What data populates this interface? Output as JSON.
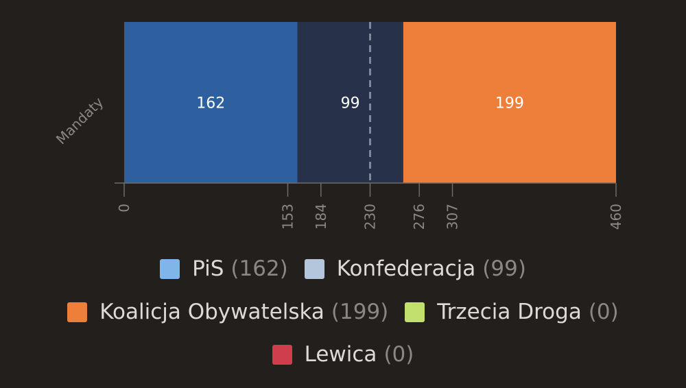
{
  "colors": {
    "background": "#221f1c",
    "axis": "#6f6c69",
    "tick_text": "#8b8883",
    "bar_label": "#ffffff",
    "majority_line": "#7d8a9b"
  },
  "chart_data": {
    "type": "bar",
    "orientation": "horizontal",
    "stacked": true,
    "categories": [
      "Mandaty"
    ],
    "ylabel": "Mandaty",
    "xlim": [
      0,
      460
    ],
    "xticks": [
      0,
      153,
      184,
      230,
      276,
      307,
      460
    ],
    "majority_line": 230,
    "series": [
      {
        "name": "PiS",
        "values": [
          162
        ],
        "bar_color": "#2e5f9e",
        "legend_color": "#7fb5e8"
      },
      {
        "name": "Konfederacja",
        "values": [
          99
        ],
        "bar_color": "#27324a",
        "legend_color": "#b3c6dc"
      },
      {
        "name": "Koalicja Obywatelska",
        "values": [
          199
        ],
        "bar_color": "#ed7f3a",
        "legend_color": "#ed7f3a"
      },
      {
        "name": "Trzecia Droga",
        "values": [
          0
        ],
        "bar_color": "#c2e06d",
        "legend_color": "#c2e06d"
      },
      {
        "name": "Lewica",
        "values": [
          0
        ],
        "bar_color": "#cf3e4d",
        "legend_color": "#cf3e4d"
      }
    ]
  },
  "legend": {
    "items": [
      {
        "name": "PiS",
        "count": "(162)",
        "color": "#7fb5e8"
      },
      {
        "name": "Konfederacja",
        "count": "(99)",
        "color": "#b3c6dc"
      },
      {
        "name": "Koalicja Obywatelska",
        "count": "(199)",
        "color": "#ed7f3a"
      },
      {
        "name": "Trzecia Droga",
        "count": "(0)",
        "color": "#c2e06d"
      },
      {
        "name": "Lewica",
        "count": "(0)",
        "color": "#cf3e4d"
      }
    ]
  }
}
